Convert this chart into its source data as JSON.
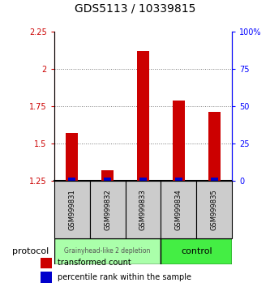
{
  "title": "GDS5113 / 10339815",
  "samples": [
    "GSM999831",
    "GSM999832",
    "GSM999833",
    "GSM999834",
    "GSM999835"
  ],
  "transformed_counts": [
    1.57,
    1.32,
    2.12,
    1.79,
    1.71
  ],
  "percentile_ranks": [
    2,
    2,
    2,
    2,
    2
  ],
  "ylim_left": [
    1.25,
    2.25
  ],
  "yticks_left": [
    1.25,
    1.5,
    1.75,
    2.0,
    2.25
  ],
  "ytick_labels_left": [
    "1.25",
    "1.5",
    "1.75",
    "2",
    "2.25"
  ],
  "ylim_right": [
    0,
    100
  ],
  "yticks_right": [
    0,
    25,
    50,
    75,
    100
  ],
  "ytick_labels_right": [
    "0",
    "25",
    "50",
    "75",
    "100%"
  ],
  "bar_color_red": "#cc0000",
  "bar_color_blue": "#0000cc",
  "group1_label": "Grainyhead-like 2 depletion",
  "group2_label": "control",
  "group1_color": "#aaffaa",
  "group2_color": "#44ee44",
  "group1_samples": [
    0,
    1,
    2
  ],
  "group2_samples": [
    3,
    4
  ],
  "protocol_label": "protocol",
  "legend_red_label": "transformed count",
  "legend_blue_label": "percentile rank within the sample",
  "bar_width": 0.35,
  "dotted_line_color": "#777777",
  "sample_box_color": "#cccccc",
  "title_fontsize": 10,
  "tick_fontsize": 7,
  "sample_fontsize": 6,
  "legend_fontsize": 7
}
